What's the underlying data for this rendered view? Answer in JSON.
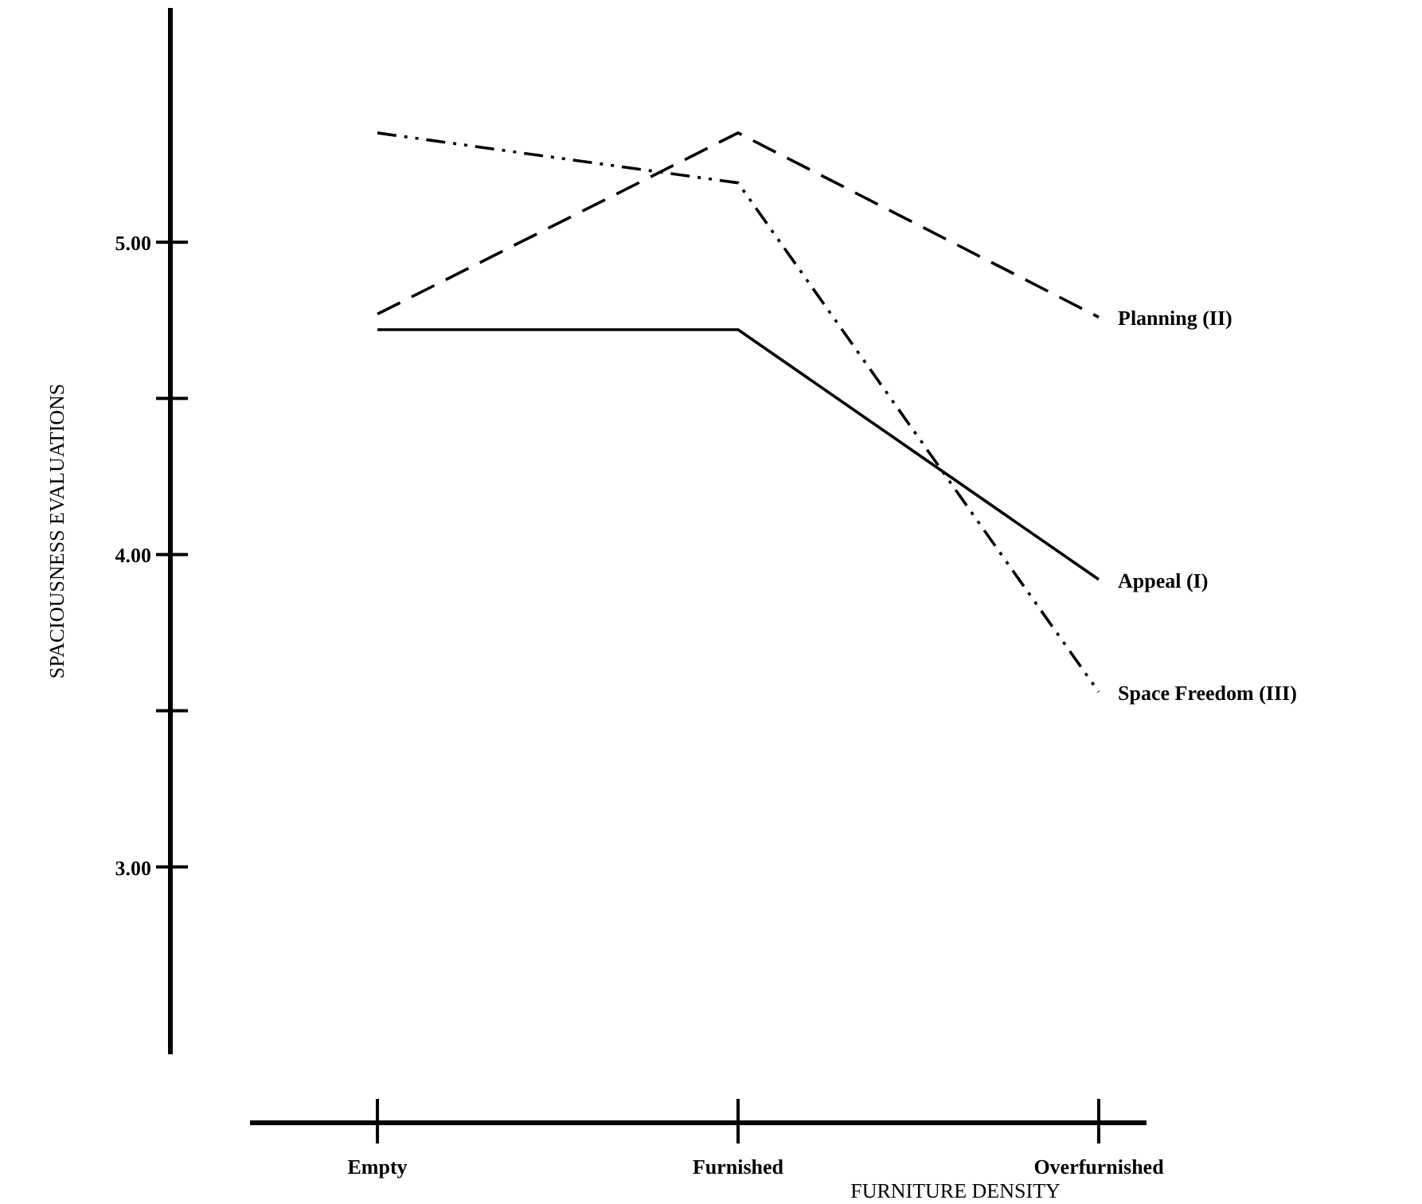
{
  "chart_data": {
    "type": "line",
    "xlabel": "FURNITURE DENSITY",
    "ylabel": "SPACIOUSNESS EVALUATIONS",
    "categories": [
      "Empty",
      "Furnished",
      "Overfurnished"
    ],
    "series": [
      {
        "name": "Planning (II)",
        "color": "#000000",
        "line_style": "dashed",
        "values": [
          4.77,
          5.35,
          4.76
        ]
      },
      {
        "name": "Appeal (I)",
        "color": "#000000",
        "line_style": "solid",
        "values": [
          4.72,
          4.72,
          3.92
        ]
      },
      {
        "name": "Space Freedom (III)",
        "color": "#000000",
        "line_style": "dotted",
        "values": [
          5.35,
          5.19,
          3.56
        ]
      }
    ],
    "ylim": [
      2.4,
      5.75
    ],
    "yticks": [
      {
        "value": 3,
        "label": "3.00"
      },
      {
        "value": 3.5,
        "label": null
      },
      {
        "value": 4,
        "label": "4.00"
      },
      {
        "value": 4.5,
        "label": null
      },
      {
        "value": 5,
        "label": "5.00"
      }
    ],
    "grid": false
  }
}
